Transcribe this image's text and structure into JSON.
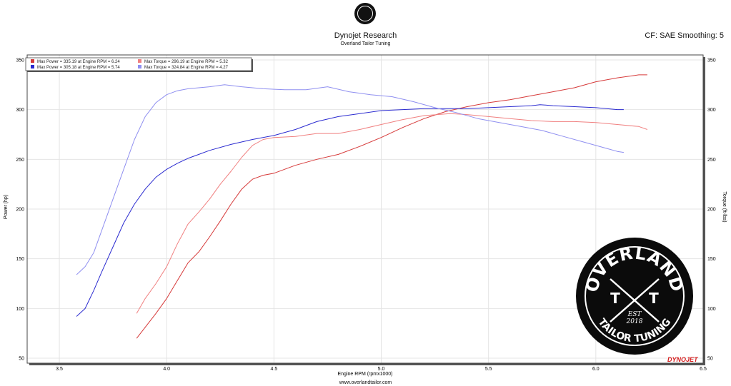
{
  "header": {
    "title": "Dynojet Research",
    "subtitle": "Overland Tailor Tuning",
    "cf": "CF: SAE Smoothing: 5"
  },
  "footer": {
    "url": "www.overlandtailor.com"
  },
  "logos": {
    "badge_lines": [
      "OVERLAND",
      "T",
      "T",
      "EST",
      "2018",
      "TAILOR TUNING"
    ],
    "brand": "DYNOJET"
  },
  "colors": {
    "red_dark": "#d63a3a",
    "blue_dark": "#2b2bd0",
    "red_light": "#f08080",
    "blue_light": "#8f8ff0"
  },
  "chart_data": {
    "type": "line",
    "title": "Dynojet Research",
    "subtitle": "Overland Tailor Tuning",
    "xlabel": "Engine RPM (rpmx1000)",
    "ylabel": "Power (hp)",
    "y2label": "Torque (ft-lbs)",
    "xlim": [
      3.35,
      6.5
    ],
    "ylim": [
      45,
      355
    ],
    "y2lim": [
      45,
      355
    ],
    "x_ticks": [
      "3.5",
      "4.0",
      "4.5",
      "5.0",
      "5.5",
      "6.0",
      "6.5"
    ],
    "y_ticks": [
      "50",
      "100",
      "150",
      "200",
      "250",
      "300",
      "350"
    ],
    "y2_ticks": [
      "50",
      "100",
      "150",
      "200",
      "250",
      "300",
      "350"
    ],
    "grid": true,
    "legend_position": "top-left",
    "legend": [
      "Max Power = 335.19 at Engine RPM = 6.24",
      "Max Power = 305.18 at Engine RPM = 5.74",
      "Max Torque = 296.19 at Engine RPM = 5.32",
      "Max Torque = 324.84 at Engine RPM = 4.27"
    ],
    "series": [
      {
        "name": "Max Power = 335.19 at Engine RPM = 6.24",
        "axis": "left",
        "x": [
          3.86,
          3.95,
          4.0,
          4.05,
          4.1,
          4.15,
          4.2,
          4.25,
          4.3,
          4.35,
          4.4,
          4.45,
          4.5,
          4.6,
          4.7,
          4.8,
          4.9,
          5.0,
          5.1,
          5.2,
          5.3,
          5.4,
          5.5,
          5.6,
          5.7,
          5.8,
          5.9,
          6.0,
          6.1,
          6.2,
          6.24
        ],
        "y": [
          70,
          95,
          110,
          128,
          146,
          157,
          172,
          188,
          205,
          220,
          230,
          234,
          236,
          244,
          250,
          255,
          263,
          272,
          282,
          291,
          298,
          303,
          307,
          310,
          314,
          318,
          322,
          328,
          332,
          335,
          335
        ]
      },
      {
        "name": "Max Power = 305.18 at Engine RPM = 5.74",
        "axis": "left",
        "x": [
          3.58,
          3.62,
          3.66,
          3.7,
          3.75,
          3.8,
          3.85,
          3.9,
          3.95,
          4.0,
          4.05,
          4.1,
          4.15,
          4.2,
          4.3,
          4.4,
          4.5,
          4.6,
          4.7,
          4.8,
          4.9,
          5.0,
          5.1,
          5.2,
          5.3,
          5.4,
          5.5,
          5.6,
          5.7,
          5.74,
          5.8,
          5.9,
          6.0,
          6.1,
          6.13
        ],
        "y": [
          92,
          100,
          118,
          138,
          162,
          186,
          205,
          220,
          232,
          240,
          246,
          251,
          255,
          259,
          265,
          270,
          274,
          280,
          288,
          293,
          296,
          299,
          300,
          301,
          301,
          301,
          302,
          303,
          304,
          305,
          304,
          303,
          302,
          300,
          300
        ]
      },
      {
        "name": "Max Torque = 296.19 at Engine RPM = 5.32",
        "axis": "right",
        "x": [
          3.86,
          3.9,
          3.95,
          4.0,
          4.05,
          4.1,
          4.15,
          4.2,
          4.25,
          4.3,
          4.35,
          4.4,
          4.45,
          4.5,
          4.6,
          4.7,
          4.8,
          4.9,
          5.0,
          5.1,
          5.2,
          5.32,
          5.4,
          5.5,
          5.6,
          5.7,
          5.8,
          5.9,
          6.0,
          6.1,
          6.2,
          6.24
        ],
        "y": [
          95,
          110,
          125,
          142,
          165,
          185,
          197,
          210,
          225,
          238,
          252,
          264,
          270,
          272,
          273,
          276,
          276,
          280,
          285,
          290,
          294,
          296,
          295,
          293,
          291,
          289,
          288,
          288,
          287,
          285,
          283,
          280
        ]
      },
      {
        "name": "Max Torque = 324.84 at Engine RPM = 4.27",
        "axis": "right",
        "x": [
          3.58,
          3.62,
          3.66,
          3.7,
          3.75,
          3.8,
          3.85,
          3.9,
          3.95,
          4.0,
          4.05,
          4.1,
          4.15,
          4.2,
          4.27,
          4.35,
          4.45,
          4.55,
          4.65,
          4.75,
          4.85,
          4.95,
          5.05,
          5.15,
          5.25,
          5.35,
          5.45,
          5.55,
          5.65,
          5.75,
          5.85,
          5.95,
          6.05,
          6.1,
          6.13
        ],
        "y": [
          134,
          142,
          156,
          180,
          210,
          240,
          270,
          293,
          307,
          315,
          319,
          321,
          322,
          323,
          325,
          323,
          321,
          320,
          320,
          323,
          318,
          315,
          313,
          308,
          302,
          297,
          291,
          287,
          283,
          279,
          273,
          267,
          261,
          258,
          257
        ]
      }
    ]
  }
}
